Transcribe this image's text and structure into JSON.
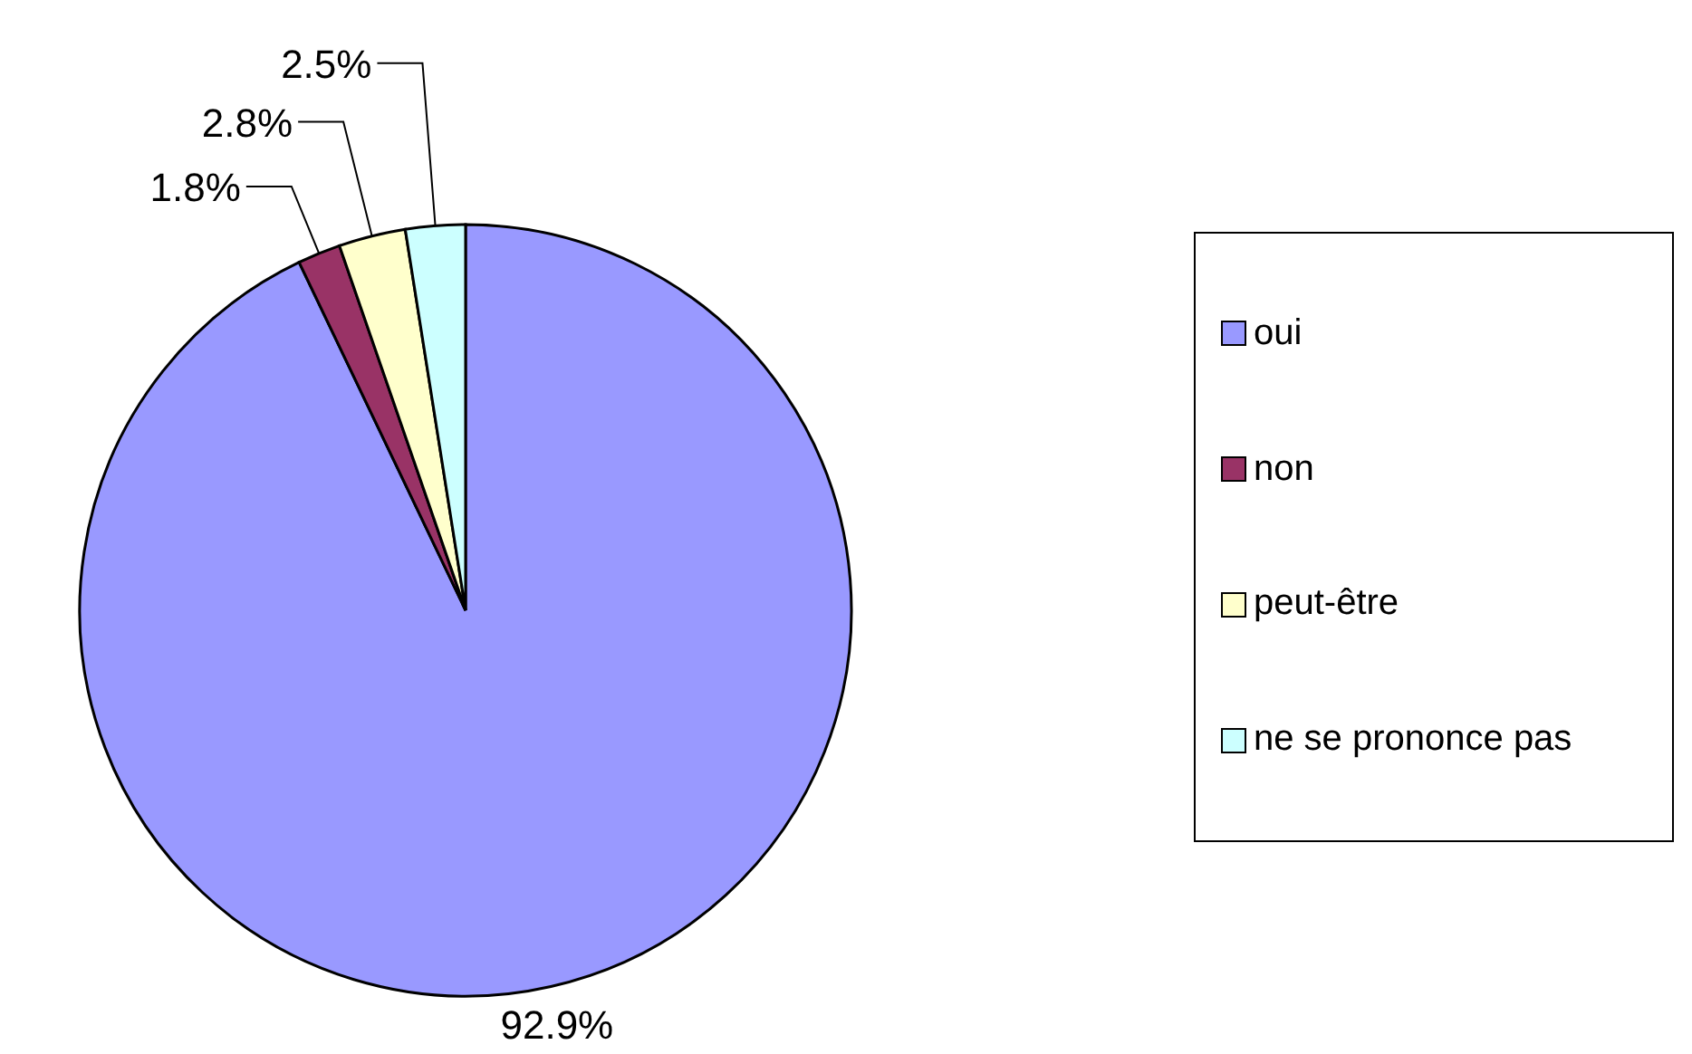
{
  "chart_data": {
    "type": "pie",
    "categories": [
      "oui",
      "non",
      "peut-être",
      "ne se prononce pas"
    ],
    "values": [
      92.9,
      1.8,
      2.8,
      2.5
    ],
    "colors": [
      "#9999ff",
      "#993366",
      "#ffffcc",
      "#ccffff"
    ],
    "value_labels": [
      "92.9%",
      "1.8%",
      "2.8%",
      "2.5%"
    ],
    "legend": "right"
  }
}
